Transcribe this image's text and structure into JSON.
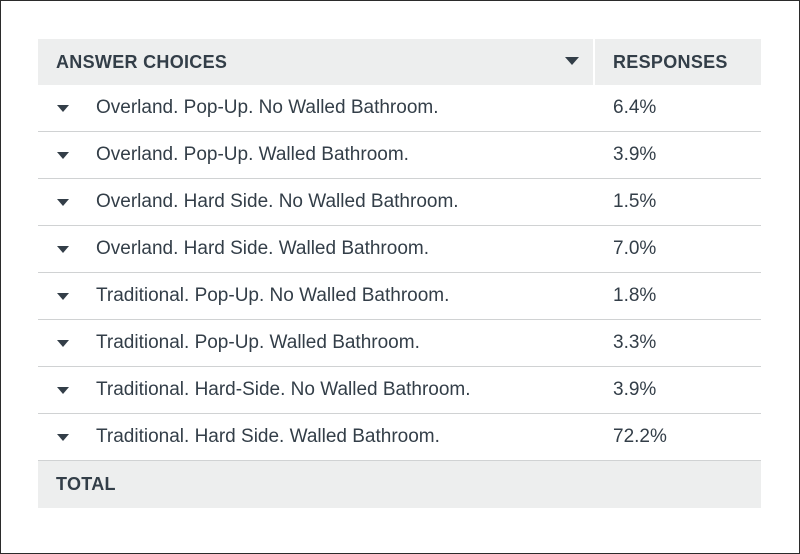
{
  "table": {
    "header": {
      "choices_label": "ANSWER CHOICES",
      "responses_label": "RESPONSES"
    },
    "footer": {
      "total_label": "TOTAL"
    }
  },
  "chart_data": {
    "type": "table",
    "columns": [
      "ANSWER CHOICES",
      "RESPONSES"
    ],
    "rows": [
      {
        "choice": "Overland. Pop-Up. No Walled Bathroom.",
        "response": "6.4%"
      },
      {
        "choice": "Overland. Pop-Up. Walled Bathroom.",
        "response": "3.9%"
      },
      {
        "choice": "Overland. Hard Side. No Walled Bathroom.",
        "response": "1.5%"
      },
      {
        "choice": "Overland. Hard Side. Walled Bathroom.",
        "response": "7.0%"
      },
      {
        "choice": "Traditional. Pop-Up. No Walled Bathroom.",
        "response": "1.8%"
      },
      {
        "choice": "Traditional. Pop-Up. Walled Bathroom.",
        "response": "3.3%"
      },
      {
        "choice": "Traditional. Hard-Side. No Walled Bathroom.",
        "response": "3.9%"
      },
      {
        "choice": "Traditional. Hard Side. Walled Bathroom.",
        "response": "72.2%"
      }
    ]
  }
}
